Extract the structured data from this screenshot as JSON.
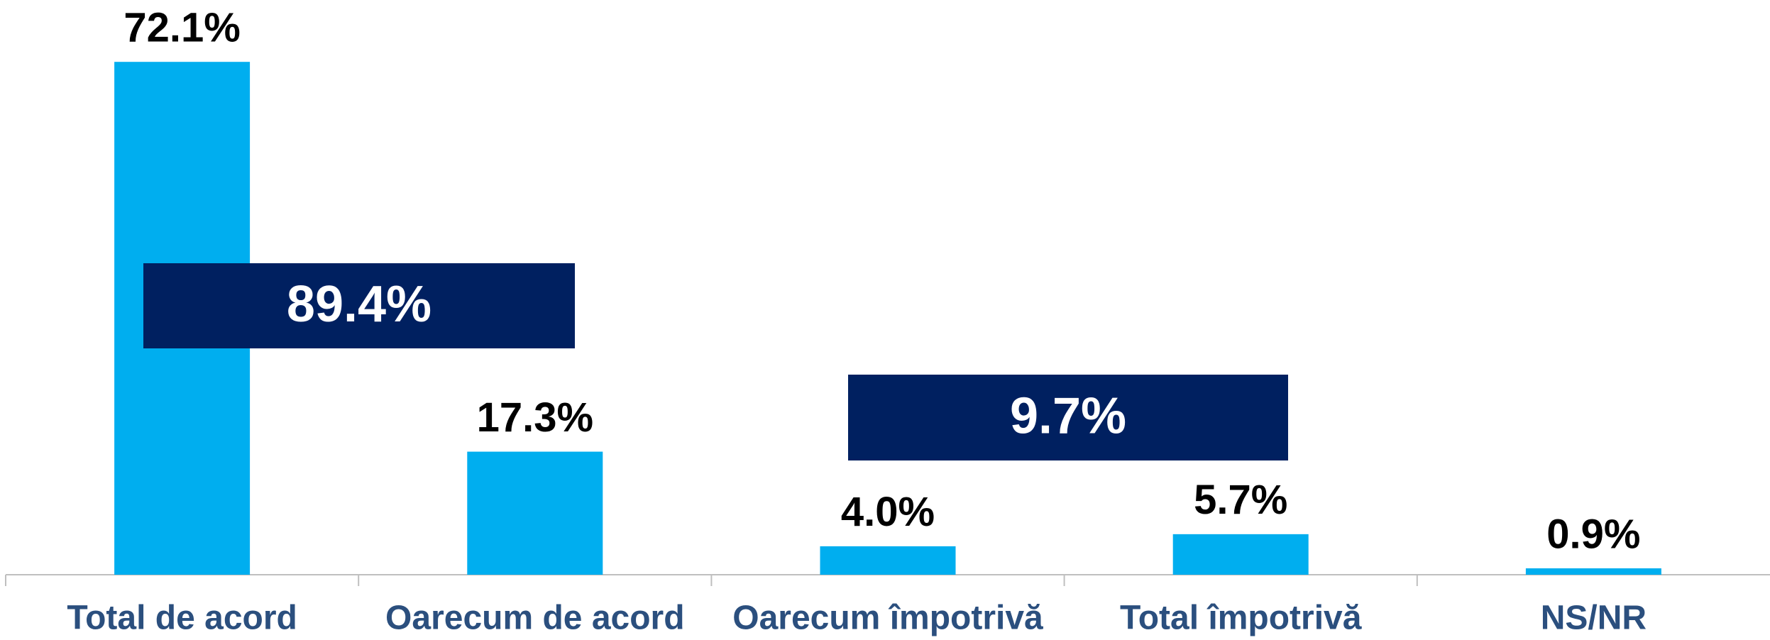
{
  "chart_data": {
    "type": "bar",
    "categories": [
      "Total de acord",
      "Oarecum de acord",
      "Oarecum împotrivă",
      "Total împotrivă",
      "NS/NR"
    ],
    "values": [
      72.1,
      17.3,
      4.0,
      5.7,
      0.9
    ],
    "value_labels": [
      "72.1%",
      "17.3%",
      "4.0%",
      "5.7%",
      "0.9%"
    ],
    "color": "#00AEEF",
    "ylim": [
      0,
      80
    ],
    "annotations": [
      {
        "text": "89.4%",
        "color": "#002060"
      },
      {
        "text": "9.7%",
        "color": "#002060"
      }
    ]
  }
}
